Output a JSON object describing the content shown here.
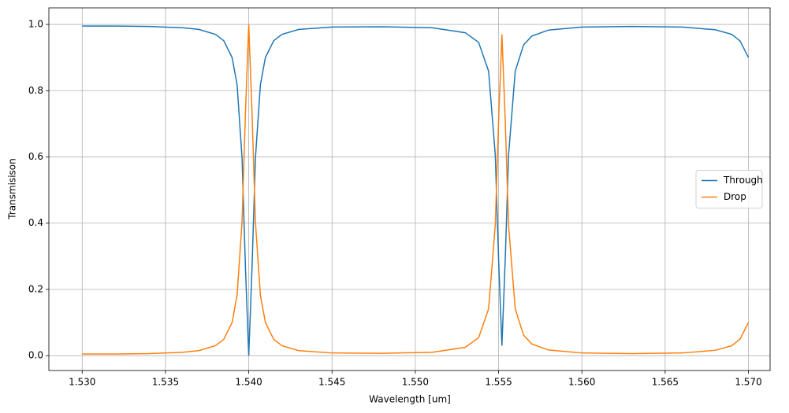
{
  "chart_data": {
    "type": "line",
    "xlabel": "Wavelength [um]",
    "ylabel": "Transmisison",
    "x": [
      1.53,
      1.532,
      1.534,
      1.536,
      1.537,
      1.538,
      1.5385,
      1.539,
      1.5393,
      1.5396,
      1.5398,
      1.54,
      1.5402,
      1.5404,
      1.5407,
      1.541,
      1.5415,
      1.542,
      1.543,
      1.545,
      1.548,
      1.551,
      1.553,
      1.5538,
      1.5544,
      1.5548,
      1.555,
      1.5552,
      1.5554,
      1.5556,
      1.556,
      1.5565,
      1.557,
      1.558,
      1.56,
      1.563,
      1.566,
      1.568,
      1.569,
      1.5695,
      1.57
    ],
    "series": [
      {
        "name": "Through",
        "color": "#1f77b4",
        "values": [
          0.995,
          0.995,
          0.994,
          0.99,
          0.985,
          0.97,
          0.951,
          0.9,
          0.818,
          0.595,
          0.269,
          0.0,
          0.269,
          0.595,
          0.818,
          0.9,
          0.951,
          0.97,
          0.985,
          0.992,
          0.993,
          0.99,
          0.975,
          0.946,
          0.859,
          0.607,
          0.291,
          0.03,
          0.291,
          0.607,
          0.859,
          0.938,
          0.965,
          0.983,
          0.992,
          0.994,
          0.992,
          0.984,
          0.97,
          0.95,
          0.9
        ]
      },
      {
        "name": "Drop",
        "color": "#ff7f0e",
        "values": [
          0.005,
          0.005,
          0.006,
          0.01,
          0.015,
          0.03,
          0.049,
          0.1,
          0.182,
          0.405,
          0.731,
          1.0,
          0.731,
          0.405,
          0.182,
          0.1,
          0.049,
          0.03,
          0.015,
          0.008,
          0.007,
          0.01,
          0.025,
          0.054,
          0.141,
          0.393,
          0.709,
          0.97,
          0.709,
          0.393,
          0.141,
          0.062,
          0.035,
          0.017,
          0.008,
          0.006,
          0.008,
          0.016,
          0.03,
          0.05,
          0.1
        ]
      }
    ],
    "xlim": [
      1.528,
      1.5713
    ],
    "ylim": [
      -0.045,
      1.05
    ],
    "xticks": [
      {
        "value": 1.53,
        "label": "1.530"
      },
      {
        "value": 1.535,
        "label": "1.535"
      },
      {
        "value": 1.54,
        "label": "1.540"
      },
      {
        "value": 1.545,
        "label": "1.545"
      },
      {
        "value": 1.55,
        "label": "1.550"
      },
      {
        "value": 1.555,
        "label": "1.555"
      },
      {
        "value": 1.56,
        "label": "1.560"
      },
      {
        "value": 1.565,
        "label": "1.565"
      },
      {
        "value": 1.57,
        "label": "1.570"
      }
    ],
    "yticks": [
      {
        "value": 0.0,
        "label": "0.0"
      },
      {
        "value": 0.2,
        "label": "0.2"
      },
      {
        "value": 0.4,
        "label": "0.4"
      },
      {
        "value": 0.6,
        "label": "0.6"
      },
      {
        "value": 0.8,
        "label": "0.8"
      },
      {
        "value": 1.0,
        "label": "1.0"
      }
    ],
    "grid": true,
    "legend": "center right"
  }
}
